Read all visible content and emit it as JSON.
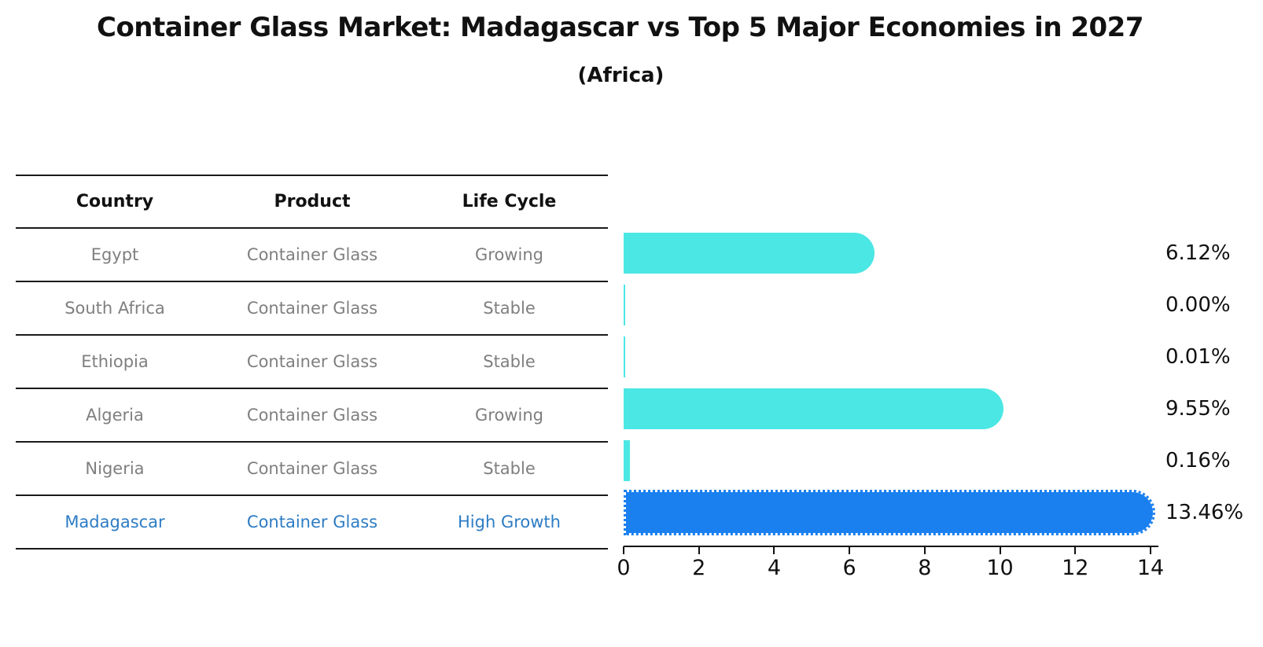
{
  "title": "Container Glass Market: Madagascar vs Top 5 Major Economies in 2027",
  "subtitle": "(Africa)",
  "table": {
    "headers": [
      "Country",
      "Product",
      "Life Cycle"
    ],
    "rows": [
      {
        "country": "Egypt",
        "product": "Container Glass",
        "life_cycle": "Growing",
        "highlight": false
      },
      {
        "country": "South Africa",
        "product": "Container Glass",
        "life_cycle": "Stable",
        "highlight": false
      },
      {
        "country": "Ethiopia",
        "product": "Container Glass",
        "life_cycle": "Stable",
        "highlight": false
      },
      {
        "country": "Algeria",
        "product": "Container Glass",
        "life_cycle": "Growing",
        "highlight": false
      },
      {
        "country": "Nigeria",
        "product": "Container Glass",
        "life_cycle": "Stable",
        "highlight": false
      },
      {
        "country": "Madagascar",
        "product": "Container Glass",
        "life_cycle": "High Growth",
        "highlight": true
      }
    ]
  },
  "chart_data": {
    "type": "bar",
    "orientation": "horizontal",
    "title": "Container Glass Market: Madagascar vs Top 5 Major Economies in 2027 (Africa)",
    "categories": [
      "Egypt",
      "South Africa",
      "Ethiopia",
      "Algeria",
      "Nigeria",
      "Madagascar"
    ],
    "values": [
      6.12,
      0.0,
      0.01,
      9.55,
      0.16,
      13.46
    ],
    "value_labels": [
      "6.12%",
      "0.00%",
      "0.01%",
      "9.55%",
      "0.16%",
      "13.46%"
    ],
    "unit": "percent",
    "x_ticks": [
      0,
      2,
      4,
      6,
      8,
      10,
      12,
      14
    ],
    "xlim": [
      0,
      14
    ],
    "grid": false,
    "legend": false,
    "bar_color": "#4be7e4",
    "highlight_color": "#1a80f0",
    "highlight_index": 5,
    "highlight_text_color": "#2d7cc4",
    "table_text_color": "#7f7f7f"
  }
}
